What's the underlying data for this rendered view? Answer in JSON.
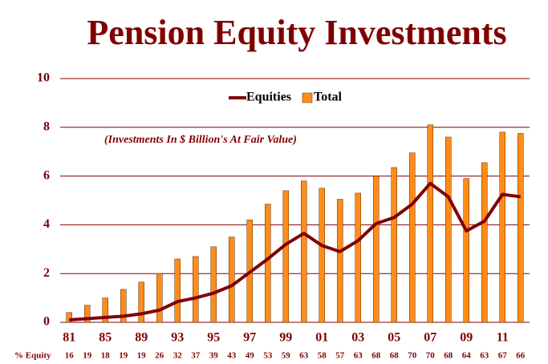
{
  "chart_data": {
    "type": "bar_line",
    "title": "Pension Equity Investments",
    "annotation": "(Investments In $ Billion's At Fair Value)",
    "categories": [
      "81",
      null,
      "85",
      null,
      "89",
      null,
      "93",
      null,
      "95",
      null,
      "97",
      null,
      "99",
      null,
      "01",
      null,
      "03",
      null,
      "05",
      null,
      "07",
      null,
      "09",
      null,
      "11",
      null
    ],
    "series": [
      {
        "name": "Equities",
        "type": "line",
        "color": "#800000",
        "values": [
          0.1,
          0.15,
          0.2,
          0.25,
          0.35,
          0.5,
          0.85,
          1.0,
          1.2,
          1.5,
          2.05,
          2.6,
          3.2,
          3.65,
          3.15,
          2.9,
          3.35,
          4.05,
          4.3,
          4.85,
          5.7,
          5.15,
          3.75,
          4.15,
          5.25,
          5.15
        ]
      },
      {
        "name": "Total",
        "type": "bar",
        "color": "#ff8c1a",
        "values": [
          0.4,
          0.7,
          1.0,
          1.35,
          1.65,
          2.0,
          2.6,
          2.7,
          3.1,
          3.5,
          4.2,
          4.85,
          5.4,
          5.8,
          5.5,
          5.05,
          5.3,
          6.0,
          6.35,
          6.95,
          8.1,
          7.6,
          5.9,
          6.55,
          7.8,
          7.75
        ]
      }
    ],
    "equity_label": "% Equity",
    "equity_pct": [
      16,
      19,
      18,
      19,
      19,
      26,
      32,
      37,
      39,
      43,
      49,
      53,
      59,
      63,
      58,
      57,
      63,
      68,
      68,
      70,
      70,
      68,
      64,
      63,
      67,
      66
    ],
    "ylim": [
      0,
      10
    ],
    "yticks": [
      0,
      2,
      4,
      6,
      8,
      10
    ],
    "grid": true,
    "grid_color": "#800000",
    "text_color": "#800000"
  }
}
